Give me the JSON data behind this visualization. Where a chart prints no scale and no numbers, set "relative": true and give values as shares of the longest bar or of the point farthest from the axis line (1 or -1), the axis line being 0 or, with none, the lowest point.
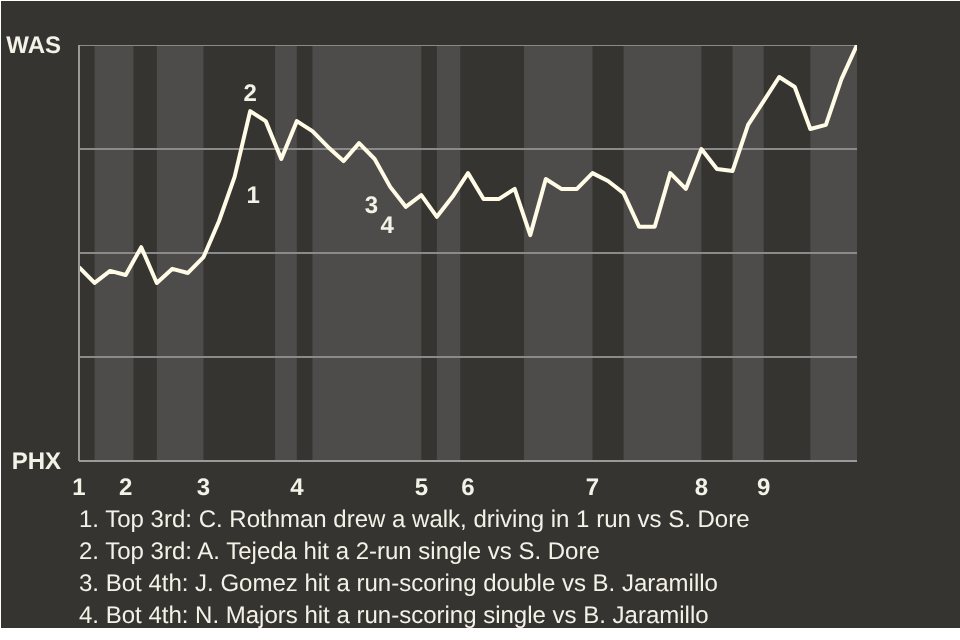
{
  "chart_data": {
    "type": "line",
    "categories": [
      "1",
      null,
      null,
      "2",
      null,
      null,
      null,
      null,
      "3",
      null,
      null,
      null,
      null,
      null,
      "4",
      null,
      null,
      null,
      null,
      null,
      null,
      null,
      "5",
      null,
      null,
      "6",
      null,
      null,
      null,
      null,
      null,
      null,
      null,
      "7",
      null,
      null,
      null,
      null,
      null,
      null,
      "8",
      null,
      null,
      null,
      "9",
      null,
      null,
      null,
      null,
      null,
      null
    ],
    "relative": true,
    "series": [
      {
        "color": "#fffbe6",
        "values": [
          0.466,
          0.428,
          0.457,
          0.447,
          0.514,
          0.428,
          0.462,
          0.452,
          0.49,
          0.577,
          0.683,
          0.841,
          0.817,
          0.726,
          0.817,
          0.793,
          0.755,
          0.721,
          0.764,
          0.726,
          0.659,
          0.611,
          0.639,
          0.587,
          0.635,
          0.692,
          0.63,
          0.63,
          0.654,
          0.543,
          0.678,
          0.654,
          0.654,
          0.692,
          0.673,
          0.644,
          0.563,
          0.563,
          0.692,
          0.654,
          0.75,
          0.702,
          0.697,
          0.808,
          0.865,
          0.923,
          0.899,
          0.798,
          0.808,
          0.918,
          1
        ]
      }
    ],
    "ref_lines": [
      {
        "axis": "y",
        "value": 0.25,
        "color": "#8a8a8a"
      },
      {
        "axis": "y",
        "value": 0.5,
        "color": "#8a8a8a"
      },
      {
        "axis": "y",
        "value": 0.75,
        "color": "#8a8a8a"
      },
      {
        "axis": "y",
        "value": 1,
        "color": "#8a8a8a"
      }
    ],
    "annotations": [
      "WAS",
      "PHX",
      "1",
      "2",
      "3",
      "4",
      "1. Top 3rd: C. Rothman drew a walk, driving in 1 run vs S. Dore",
      "2. Top 3rd: A. Tejeda hit a 2-run single vs S. Dore",
      "3. Bot 4th: J. Gomez hit a run-scoring double vs B. Jaramillo",
      "4. Bot 4th: N. Majors hit a run-scoring single vs B. Jaramillo"
    ]
  }
}
